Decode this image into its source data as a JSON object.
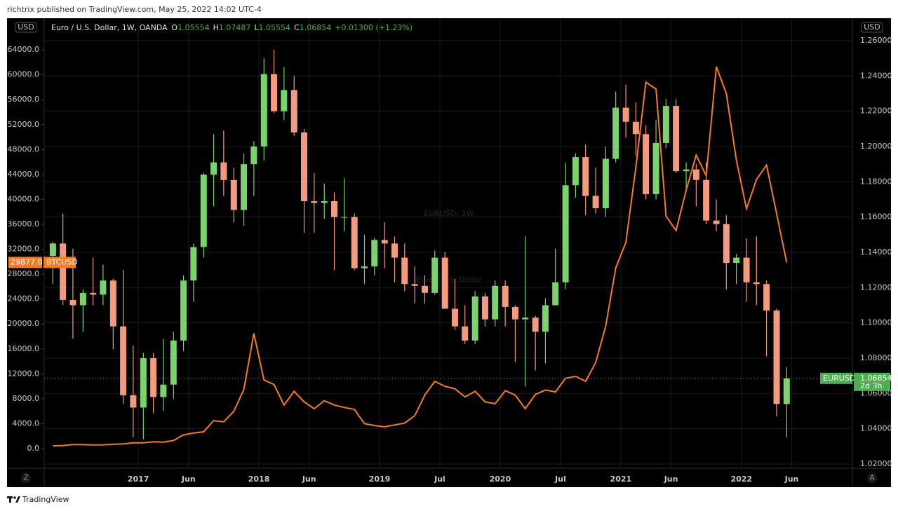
{
  "header": {
    "published_by": "richtrix published on TradingView.com, May 25, 2022 14:02 UTC-4"
  },
  "footer": {
    "brand": "TradingView"
  },
  "buttons": [
    "Z",
    "A"
  ],
  "chart_data": {
    "type": "candlestick",
    "title": "Euro / U.S. Dollar, 1W, OANDA",
    "ohlc_legend": [
      {
        "key": "O",
        "value": "1.05554"
      },
      {
        "key": "H",
        "value": "1.07487"
      },
      {
        "key": "L",
        "value": "1.05554"
      },
      {
        "key": "C",
        "value": "1.06854"
      }
    ],
    "change": "+0.01300 (+1.23%)",
    "watermark": [
      "EURUSD, 1W",
      "Euro / U.S. Dollar"
    ],
    "y_unit": "USD",
    "y2_unit": "USD",
    "xlim": [
      2016.22,
      2022.92
    ],
    "xticks": [
      2017,
      {
        "value": 2017.417,
        "label": "Jun"
      },
      2018,
      {
        "value": 2018.417,
        "label": "Jun"
      },
      2019,
      {
        "value": 2019.5,
        "label": "Jul"
      },
      2020,
      {
        "value": 2020.5,
        "label": "Jul"
      },
      2021,
      {
        "value": 2021.417,
        "label": "Jun"
      },
      2022,
      {
        "value": 2022.417,
        "label": "Jun"
      }
    ],
    "ylim": [
      -3150,
      69075
    ],
    "yticks": [
      {
        "value": 0,
        "label": "0.0"
      },
      {
        "value": 4000,
        "label": "4000.0"
      },
      {
        "value": 8000,
        "label": "8000.0"
      },
      {
        "value": 12000,
        "label": "12000.0"
      },
      {
        "value": 16000,
        "label": "16000.0"
      },
      {
        "value": 20000,
        "label": "20000.0"
      },
      {
        "value": 24000,
        "label": "24000.0"
      },
      {
        "value": 28000,
        "label": "28000.0"
      },
      {
        "value": 32000,
        "label": "32000.0"
      },
      {
        "value": 36000,
        "label": "36000.0"
      },
      {
        "value": 40000,
        "label": "40000.0"
      },
      {
        "value": 44000,
        "label": "44000.0"
      },
      {
        "value": 48000,
        "label": "48000.0"
      },
      {
        "value": 52000,
        "label": "52000.0"
      },
      {
        "value": 56000,
        "label": "56000.0"
      },
      {
        "value": 60000,
        "label": "60000.0"
      },
      {
        "value": 64000,
        "label": "64000.0"
      }
    ],
    "y2lim": [
      1.0176,
      1.2727
    ],
    "y2ticks": [
      {
        "value": 1.02,
        "label": "1.02000"
      },
      {
        "value": 1.04,
        "label": "1.04000"
      },
      {
        "value": 1.06,
        "label": "1.06000"
      },
      {
        "value": 1.08,
        "label": "1.08000"
      },
      {
        "value": 1.1,
        "label": "1.10000"
      },
      {
        "value": 1.12,
        "label": "1.12000"
      },
      {
        "value": 1.14,
        "label": "1.14000"
      },
      {
        "value": 1.16,
        "label": "1.16000"
      },
      {
        "value": 1.18,
        "label": "1.18000"
      },
      {
        "value": 1.2,
        "label": "1.20000"
      },
      {
        "value": 1.22,
        "label": "1.22000"
      },
      {
        "value": 1.24,
        "label": "1.24000"
      },
      {
        "value": 1.26,
        "label": "1.26000"
      }
    ],
    "grid": true,
    "series": [
      {
        "name": "EURUSD",
        "type": "candlestick",
        "axis": "y2",
        "up_color": "#7bd36b",
        "down_color": "#f49a7e",
        "last_color": "#4caf50",
        "countdown": "2d 3h",
        "x": [
          2016.292,
          2016.375,
          2016.458,
          2016.542,
          2016.625,
          2016.708,
          2016.792,
          2016.875,
          2016.958,
          2017.042,
          2017.125,
          2017.208,
          2017.292,
          2017.375,
          2017.458,
          2017.542,
          2017.625,
          2017.708,
          2017.792,
          2017.875,
          2017.958,
          2018.042,
          2018.125,
          2018.208,
          2018.292,
          2018.375,
          2018.458,
          2018.542,
          2018.625,
          2018.708,
          2018.792,
          2018.875,
          2018.958,
          2019.042,
          2019.125,
          2019.208,
          2019.292,
          2019.375,
          2019.458,
          2019.542,
          2019.625,
          2019.708,
          2019.792,
          2019.875,
          2019.958,
          2020.042,
          2020.125,
          2020.208,
          2020.292,
          2020.375,
          2020.458,
          2020.542,
          2020.625,
          2020.708,
          2020.792,
          2020.875,
          2020.958,
          2021.042,
          2021.125,
          2021.208,
          2021.292,
          2021.375,
          2021.458,
          2021.542,
          2021.625,
          2021.708,
          2021.792,
          2021.875,
          2021.958,
          2022.042,
          2022.125,
          2022.208,
          2022.292,
          2022.375
        ],
        "open": [
          1.138,
          1.145,
          1.113,
          1.11,
          1.117,
          1.116,
          1.124,
          1.098,
          1.059,
          1.052,
          1.08,
          1.058,
          1.065,
          1.09,
          1.124,
          1.143,
          1.184,
          1.191,
          1.181,
          1.164,
          1.19,
          1.2,
          1.241,
          1.22,
          1.232,
          1.208,
          1.169,
          1.168,
          1.169,
          1.16,
          1.16,
          1.131,
          1.132,
          1.147,
          1.145,
          1.137,
          1.122,
          1.121,
          1.117,
          1.137,
          1.108,
          1.098,
          1.09,
          1.115,
          1.102,
          1.121,
          1.109,
          1.102,
          1.103,
          1.095,
          1.11,
          1.123,
          1.178,
          1.194,
          1.172,
          1.165,
          1.193,
          1.222,
          1.214,
          1.207,
          1.173,
          1.202,
          1.223,
          1.186,
          1.187,
          1.181,
          1.158,
          1.156,
          1.134,
          1.137,
          1.123,
          1.122,
          1.107,
          1.054
        ],
        "high": [
          1.146,
          1.162,
          1.142,
          1.119,
          1.137,
          1.133,
          1.125,
          1.13,
          1.087,
          1.083,
          1.083,
          1.091,
          1.095,
          1.127,
          1.145,
          1.185,
          1.207,
          1.209,
          1.188,
          1.196,
          1.203,
          1.25,
          1.255,
          1.245,
          1.24,
          1.21,
          1.185,
          1.179,
          1.174,
          1.182,
          1.162,
          1.15,
          1.148,
          1.157,
          1.149,
          1.145,
          1.132,
          1.127,
          1.141,
          1.14,
          1.125,
          1.11,
          1.118,
          1.117,
          1.124,
          1.124,
          1.11,
          1.149,
          1.104,
          1.114,
          1.142,
          1.191,
          1.196,
          1.201,
          1.188,
          1.2,
          1.231,
          1.235,
          1.225,
          1.212,
          1.215,
          1.227,
          1.227,
          1.191,
          1.19,
          1.191,
          1.17,
          1.161,
          1.139,
          1.148,
          1.149,
          1.124,
          1.108,
          1.075
        ],
        "low": [
          1.122,
          1.11,
          1.091,
          1.095,
          1.11,
          1.11,
          1.085,
          1.054,
          1.035,
          1.034,
          1.049,
          1.05,
          1.057,
          1.084,
          1.112,
          1.137,
          1.166,
          1.172,
          1.157,
          1.155,
          1.172,
          1.192,
          1.219,
          1.215,
          1.206,
          1.151,
          1.151,
          1.159,
          1.13,
          1.152,
          1.13,
          1.122,
          1.127,
          1.131,
          1.123,
          1.118,
          1.111,
          1.111,
          1.116,
          1.11,
          1.096,
          1.088,
          1.088,
          1.098,
          1.098,
          1.098,
          1.078,
          1.064,
          1.073,
          1.077,
          1.11,
          1.119,
          1.171,
          1.161,
          1.162,
          1.16,
          1.191,
          1.205,
          1.195,
          1.17,
          1.17,
          1.199,
          1.185,
          1.175,
          1.166,
          1.156,
          1.152,
          1.119,
          1.122,
          1.112,
          1.11,
          1.081,
          1.047,
          1.035
        ],
        "close": [
          1.145,
          1.113,
          1.11,
          1.117,
          1.116,
          1.124,
          1.098,
          1.059,
          1.052,
          1.08,
          1.058,
          1.065,
          1.09,
          1.124,
          1.143,
          1.184,
          1.191,
          1.181,
          1.164,
          1.19,
          1.2,
          1.241,
          1.22,
          1.232,
          1.208,
          1.169,
          1.168,
          1.169,
          1.16,
          1.16,
          1.131,
          1.132,
          1.147,
          1.145,
          1.137,
          1.122,
          1.121,
          1.117,
          1.137,
          1.108,
          1.098,
          1.09,
          1.115,
          1.102,
          1.121,
          1.109,
          1.102,
          1.103,
          1.095,
          1.11,
          1.123,
          1.178,
          1.194,
          1.172,
          1.165,
          1.193,
          1.222,
          1.214,
          1.207,
          1.173,
          1.202,
          1.223,
          1.186,
          1.187,
          1.181,
          1.158,
          1.156,
          1.134,
          1.137,
          1.123,
          1.122,
          1.107,
          1.054,
          1.06854
        ]
      },
      {
        "name": "BTCUSD",
        "type": "line",
        "axis": "y",
        "color": "#f57c1f",
        "last_value_label": "29877.0",
        "x": [
          2016.292,
          2016.375,
          2016.458,
          2016.542,
          2016.625,
          2016.708,
          2016.792,
          2016.875,
          2016.958,
          2017.042,
          2017.125,
          2017.208,
          2017.292,
          2017.375,
          2017.458,
          2017.542,
          2017.625,
          2017.708,
          2017.792,
          2017.875,
          2017.958,
          2018.042,
          2018.125,
          2018.208,
          2018.292,
          2018.375,
          2018.458,
          2018.542,
          2018.625,
          2018.708,
          2018.792,
          2018.875,
          2018.958,
          2019.042,
          2019.125,
          2019.208,
          2019.292,
          2019.375,
          2019.458,
          2019.542,
          2019.625,
          2019.708,
          2019.792,
          2019.875,
          2019.958,
          2020.042,
          2020.125,
          2020.208,
          2020.292,
          2020.375,
          2020.458,
          2020.542,
          2020.625,
          2020.708,
          2020.792,
          2020.875,
          2020.958,
          2021.042,
          2021.125,
          2021.208,
          2021.292,
          2021.375,
          2021.458,
          2021.542,
          2021.625,
          2021.708,
          2021.792,
          2021.875,
          2021.958,
          2022.042,
          2022.125,
          2022.208,
          2022.292,
          2022.375
        ],
        "values": [
          450,
          500,
          650,
          650,
          580,
          610,
          700,
          740,
          950,
          920,
          1100,
          1050,
          1300,
          2200,
          2500,
          2700,
          4500,
          4300,
          6000,
          9500,
          18500,
          11000,
          10300,
          7000,
          9200,
          7500,
          6400,
          7700,
          7000,
          6600,
          6300,
          4000,
          3700,
          3500,
          3800,
          4100,
          5300,
          8600,
          10800,
          10000,
          9600,
          8300,
          9200,
          7500,
          7200,
          9300,
          8600,
          6400,
          8700,
          9400,
          9100,
          11300,
          11600,
          10800,
          13800,
          19700,
          29000,
          33100,
          45200,
          58800,
          57700,
          37300,
          35000,
          41500,
          47100,
          43800,
          61300,
          57000,
          46300,
          38500,
          43200,
          45500,
          37700,
          29877
        ]
      }
    ]
  }
}
